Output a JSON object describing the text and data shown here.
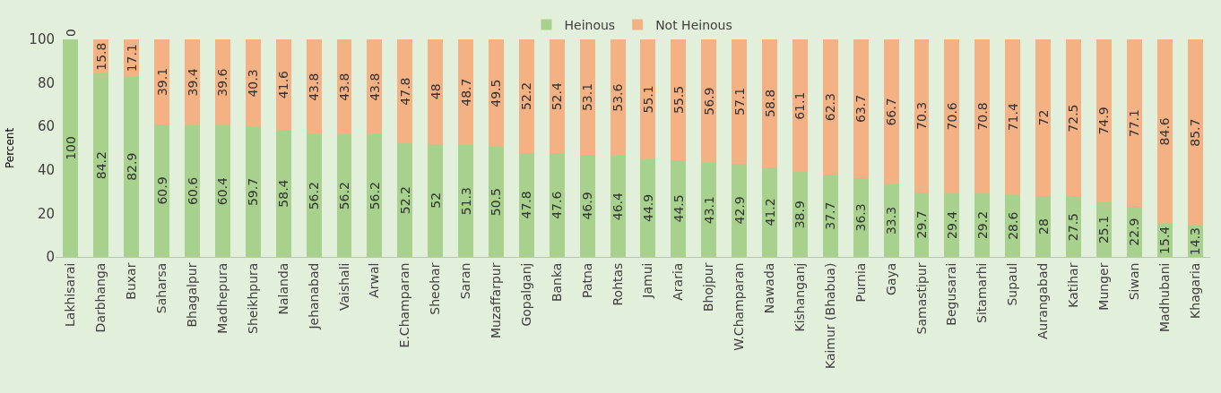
{
  "chart_data": {
    "type": "bar",
    "stacked": true,
    "ylabel": "Percent",
    "ylim": [
      0,
      100
    ],
    "yticks": [
      0,
      20,
      40,
      60,
      80,
      100
    ],
    "grid": false,
    "legend": "top",
    "data_labels": true,
    "categories": [
      "Lakhisarai",
      "Darbhanga",
      "Buxar",
      "Saharsa",
      "Bhagalpur",
      "Madhepura",
      "Sheikhpura",
      "Nalanda",
      "Jehanabad",
      "Vaishali",
      "Arwal",
      "E.Champaran",
      "Sheohar",
      "Saran",
      "Muzaffarpur",
      "Gopalganj",
      "Banka",
      "Patna",
      "Rohtas",
      "Jamui",
      "Araria",
      "Bhojpur",
      "W.Champaran",
      "Nawada",
      "Kishanganj",
      "Kaimur (Bhabua)",
      "Purnia",
      "Gaya",
      "Samastipur",
      "Begusarai",
      "Sitamarhi",
      "Supaul",
      "Aurangabad",
      "Katihar",
      "Munger",
      "Siwan",
      "Madhubani",
      "Khagaria"
    ],
    "series": [
      {
        "name": "Heinous",
        "color": "#a9d18e",
        "values": [
          100,
          84.2,
          82.9,
          60.9,
          60.6,
          60.4,
          59.7,
          58.4,
          56.2,
          56.2,
          56.2,
          52.2,
          52,
          51.3,
          50.5,
          47.8,
          47.6,
          46.9,
          46.4,
          44.9,
          44.5,
          43.1,
          42.9,
          41.2,
          38.9,
          37.7,
          36.3,
          33.3,
          29.7,
          29.4,
          29.2,
          28.6,
          28,
          27.5,
          25.1,
          22.9,
          15.4,
          14.3
        ]
      },
      {
        "name": "Not Heinous",
        "color": "#f4b183",
        "values": [
          0,
          15.8,
          17.1,
          39.1,
          39.4,
          39.6,
          40.3,
          41.6,
          43.8,
          43.8,
          43.8,
          47.8,
          48,
          48.7,
          49.5,
          52.2,
          52.4,
          53.1,
          53.6,
          55.1,
          55.5,
          56.9,
          57.1,
          58.8,
          61.1,
          62.3,
          63.7,
          66.7,
          70.3,
          70.6,
          70.8,
          71.4,
          72,
          72.5,
          74.9,
          77.1,
          84.6,
          85.7
        ]
      }
    ]
  }
}
